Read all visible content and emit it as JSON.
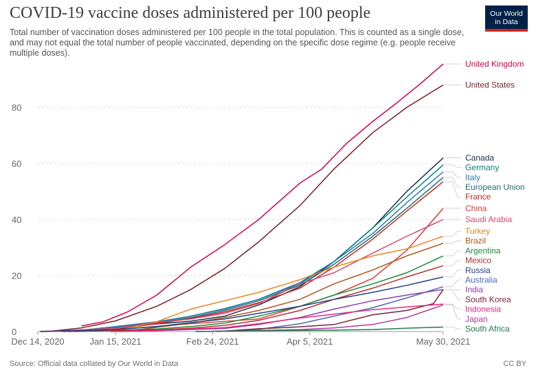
{
  "header": {
    "title": "COVID-19 vaccine doses administered per 100 people",
    "subtitle": "Total number of vaccination doses administered per 100 people in the total population. This is counted as a single dose, and may not equal the total number of people vaccinated, depending on the specific dose regime (e.g. people receive multiple doses).",
    "logo_line1": "Our World",
    "logo_line2": "in Data",
    "logo_color": "#002147",
    "logo_accent": "#ce261e"
  },
  "footer": {
    "source": "Source: Official data collated by Our World in Data",
    "license": "CC BY"
  },
  "chart_data": {
    "type": "line",
    "title": "COVID-19 vaccine doses administered per 100 people",
    "xlabel": "",
    "ylabel": "",
    "x_start": "2020-12-14",
    "x_end": "2021-05-30",
    "x_ticks": [
      {
        "date": "2020-12-14",
        "label": "Dec 14, 2020"
      },
      {
        "date": "2021-01-15",
        "label": "Jan 15, 2021"
      },
      {
        "date": "2021-02-24",
        "label": "Feb 24, 2021"
      },
      {
        "date": "2021-04-05",
        "label": "Apr 5, 2021"
      },
      {
        "date": "2021-05-30",
        "label": "May 30, 2021"
      }
    ],
    "ylim": [
      0,
      95
    ],
    "y_ticks": [
      0,
      20,
      40,
      60,
      80
    ],
    "grid": "horizontal dashed",
    "legend": "right (line labels)",
    "series": [
      {
        "name": "United Kingdom",
        "color": "#d6004f",
        "points": [
          [
            "2021-01-01",
            2
          ],
          [
            "2021-01-10",
            3.5
          ],
          [
            "2021-01-20",
            7
          ],
          [
            "2021-02-01",
            13
          ],
          [
            "2021-02-15",
            23
          ],
          [
            "2021-03-01",
            31
          ],
          [
            "2021-03-15",
            40
          ],
          [
            "2021-04-01",
            53
          ],
          [
            "2021-04-10",
            58
          ],
          [
            "2021-04-20",
            67
          ],
          [
            "2021-05-01",
            75
          ],
          [
            "2021-05-10",
            81
          ],
          [
            "2021-05-20",
            88
          ],
          [
            "2021-05-30",
            95.5
          ]
        ]
      },
      {
        "name": "United States",
        "color": "#7a1c25",
        "points": [
          [
            "2020-12-20",
            0.2
          ],
          [
            "2021-01-01",
            1.3
          ],
          [
            "2021-01-15",
            3.8
          ],
          [
            "2021-02-01",
            9
          ],
          [
            "2021-02-15",
            15
          ],
          [
            "2021-03-01",
            22.5
          ],
          [
            "2021-03-15",
            32
          ],
          [
            "2021-04-01",
            45
          ],
          [
            "2021-04-15",
            58
          ],
          [
            "2021-05-01",
            71
          ],
          [
            "2021-05-15",
            80
          ],
          [
            "2021-05-30",
            88
          ]
        ]
      },
      {
        "name": "Canada",
        "color": "#1a2f4a",
        "points": [
          [
            "2020-12-15",
            0
          ],
          [
            "2021-01-01",
            0.5
          ],
          [
            "2021-01-15",
            1.7
          ],
          [
            "2021-02-01",
            2.7
          ],
          [
            "2021-02-15",
            3.7
          ],
          [
            "2021-03-01",
            5.5
          ],
          [
            "2021-03-15",
            9.5
          ],
          [
            "2021-04-01",
            16
          ],
          [
            "2021-04-15",
            25
          ],
          [
            "2021-05-01",
            37
          ],
          [
            "2021-05-15",
            50
          ],
          [
            "2021-05-30",
            62
          ]
        ]
      },
      {
        "name": "Germany",
        "color": "#00847e",
        "points": [
          [
            "2020-12-27",
            0
          ],
          [
            "2021-01-15",
            1.5
          ],
          [
            "2021-02-01",
            3.3
          ],
          [
            "2021-02-15",
            5.5
          ],
          [
            "2021-03-01",
            8.2
          ],
          [
            "2021-03-15",
            11.5
          ],
          [
            "2021-04-01",
            17
          ],
          [
            "2021-04-15",
            25
          ],
          [
            "2021-05-01",
            37
          ],
          [
            "2021-05-15",
            48
          ],
          [
            "2021-05-30",
            59.5
          ]
        ]
      },
      {
        "name": "Italy",
        "color": "#2b79b6",
        "points": [
          [
            "2020-12-27",
            0
          ],
          [
            "2021-01-15",
            1.8
          ],
          [
            "2021-02-01",
            3.5
          ],
          [
            "2021-02-15",
            5.5
          ],
          [
            "2021-03-01",
            8
          ],
          [
            "2021-03-15",
            11.5
          ],
          [
            "2021-04-01",
            17.5
          ],
          [
            "2021-04-15",
            25
          ],
          [
            "2021-05-01",
            35
          ],
          [
            "2021-05-15",
            46
          ],
          [
            "2021-05-30",
            57
          ]
        ]
      },
      {
        "name": "European Union",
        "color": "#1f6f78",
        "points": [
          [
            "2020-12-27",
            0
          ],
          [
            "2021-01-15",
            1.3
          ],
          [
            "2021-02-01",
            3
          ],
          [
            "2021-02-15",
            5
          ],
          [
            "2021-03-01",
            7.5
          ],
          [
            "2021-03-15",
            11
          ],
          [
            "2021-04-01",
            16.5
          ],
          [
            "2021-04-15",
            24
          ],
          [
            "2021-05-01",
            34
          ],
          [
            "2021-05-15",
            44
          ],
          [
            "2021-05-30",
            55
          ]
        ]
      },
      {
        "name": "France",
        "color": "#c8281f",
        "points": [
          [
            "2020-12-27",
            0
          ],
          [
            "2021-01-15",
            0.8
          ],
          [
            "2021-02-01",
            2.8
          ],
          [
            "2021-02-15",
            4.7
          ],
          [
            "2021-03-01",
            7
          ],
          [
            "2021-03-15",
            10.3
          ],
          [
            "2021-04-01",
            15.5
          ],
          [
            "2021-04-15",
            23
          ],
          [
            "2021-05-01",
            33
          ],
          [
            "2021-05-15",
            43
          ],
          [
            "2021-05-30",
            53.5
          ]
        ]
      },
      {
        "name": "China",
        "color": "#e03a3a",
        "points": [
          [
            "2020-12-15",
            0.1
          ],
          [
            "2021-01-15",
            0.7
          ],
          [
            "2021-02-15",
            2.8
          ],
          [
            "2021-03-15",
            4.5
          ],
          [
            "2021-04-01",
            9
          ],
          [
            "2021-04-15",
            13
          ],
          [
            "2021-05-01",
            19
          ],
          [
            "2021-05-15",
            29
          ],
          [
            "2021-05-30",
            44
          ]
        ]
      },
      {
        "name": "Saudi Arabia",
        "color": "#d54a6e",
        "points": [
          [
            "2020-12-17",
            0
          ],
          [
            "2021-01-15",
            1.2
          ],
          [
            "2021-02-01",
            3.2
          ],
          [
            "2021-02-15",
            4.5
          ],
          [
            "2021-03-01",
            6.5
          ],
          [
            "2021-03-15",
            10
          ],
          [
            "2021-04-01",
            17
          ],
          [
            "2021-04-15",
            21
          ],
          [
            "2021-05-01",
            28
          ],
          [
            "2021-05-15",
            34
          ],
          [
            "2021-05-30",
            40
          ]
        ]
      },
      {
        "name": "Turkey",
        "color": "#e8821f",
        "points": [
          [
            "2021-01-14",
            0
          ],
          [
            "2021-02-01",
            3.5
          ],
          [
            "2021-02-15",
            8
          ],
          [
            "2021-03-01",
            11
          ],
          [
            "2021-03-15",
            14
          ],
          [
            "2021-04-01",
            18.5
          ],
          [
            "2021-04-15",
            23
          ],
          [
            "2021-05-01",
            27
          ],
          [
            "2021-05-15",
            29.5
          ],
          [
            "2021-05-30",
            34
          ]
        ]
      },
      {
        "name": "Brazil",
        "color": "#b4531a",
        "points": [
          [
            "2021-01-18",
            0
          ],
          [
            "2021-02-01",
            1.5
          ],
          [
            "2021-02-15",
            3
          ],
          [
            "2021-03-01",
            5
          ],
          [
            "2021-03-15",
            7.5
          ],
          [
            "2021-04-01",
            11.5
          ],
          [
            "2021-04-15",
            17
          ],
          [
            "2021-05-01",
            22
          ],
          [
            "2021-05-15",
            27
          ],
          [
            "2021-05-30",
            31.5
          ]
        ]
      },
      {
        "name": "Argentina",
        "color": "#1a8a3c",
        "points": [
          [
            "2020-12-29",
            0
          ],
          [
            "2021-01-15",
            0.4
          ],
          [
            "2021-02-01",
            0.9
          ],
          [
            "2021-02-15",
            1.8
          ],
          [
            "2021-03-01",
            3
          ],
          [
            "2021-03-15",
            5.5
          ],
          [
            "2021-04-01",
            9
          ],
          [
            "2021-04-15",
            13
          ],
          [
            "2021-05-01",
            17
          ],
          [
            "2021-05-15",
            21
          ],
          [
            "2021-05-30",
            27
          ]
        ]
      },
      {
        "name": "Mexico",
        "color": "#b02e2e",
        "points": [
          [
            "2020-12-24",
            0
          ],
          [
            "2021-01-15",
            0.4
          ],
          [
            "2021-02-01",
            0.6
          ],
          [
            "2021-02-15",
            1.2
          ],
          [
            "2021-03-01",
            2.2
          ],
          [
            "2021-03-15",
            4
          ],
          [
            "2021-04-01",
            7.5
          ],
          [
            "2021-04-15",
            11.5
          ],
          [
            "2021-05-01",
            15.5
          ],
          [
            "2021-05-15",
            19.5
          ],
          [
            "2021-05-30",
            23.5
          ]
        ]
      },
      {
        "name": "Russia",
        "color": "#1f3f8a",
        "points": [
          [
            "2020-12-15",
            0
          ],
          [
            "2021-01-15",
            0.7
          ],
          [
            "2021-02-01",
            1.8
          ],
          [
            "2021-02-15",
            3.2
          ],
          [
            "2021-03-01",
            4.5
          ],
          [
            "2021-03-15",
            6.5
          ],
          [
            "2021-04-01",
            9
          ],
          [
            "2021-04-15",
            11.5
          ],
          [
            "2021-05-01",
            14
          ],
          [
            "2021-05-15",
            16.5
          ],
          [
            "2021-05-30",
            19.5
          ]
        ]
      },
      {
        "name": "Australia",
        "color": "#4a6ab0",
        "points": [
          [
            "2021-02-22",
            0
          ],
          [
            "2021-03-01",
            0.2
          ],
          [
            "2021-03-15",
            0.8
          ],
          [
            "2021-04-01",
            2.8
          ],
          [
            "2021-04-15",
            5.5
          ],
          [
            "2021-05-01",
            8.5
          ],
          [
            "2021-05-15",
            12
          ],
          [
            "2021-05-30",
            16
          ]
        ]
      },
      {
        "name": "India",
        "color": "#8c3fa8",
        "points": [
          [
            "2021-01-16",
            0
          ],
          [
            "2021-02-01",
            0.3
          ],
          [
            "2021-02-15",
            0.7
          ],
          [
            "2021-03-01",
            1.1
          ],
          [
            "2021-03-15",
            2.5
          ],
          [
            "2021-04-01",
            5
          ],
          [
            "2021-04-15",
            8
          ],
          [
            "2021-05-01",
            11
          ],
          [
            "2021-05-15",
            13
          ],
          [
            "2021-05-30",
            15
          ]
        ]
      },
      {
        "name": "South Korea",
        "color": "#7a1f3a",
        "points": [
          [
            "2021-02-26",
            0
          ],
          [
            "2021-03-15",
            1
          ],
          [
            "2021-04-01",
            1.7
          ],
          [
            "2021-04-15",
            2.5
          ],
          [
            "2021-05-01",
            6
          ],
          [
            "2021-05-15",
            7.5
          ],
          [
            "2021-05-26",
            10
          ],
          [
            "2021-05-30",
            15
          ]
        ]
      },
      {
        "name": "Indonesia",
        "color": "#e0297c",
        "points": [
          [
            "2021-01-13",
            0
          ],
          [
            "2021-02-01",
            0.4
          ],
          [
            "2021-02-15",
            0.9
          ],
          [
            "2021-03-01",
            1.4
          ],
          [
            "2021-03-15",
            2.8
          ],
          [
            "2021-04-01",
            4.8
          ],
          [
            "2021-04-15",
            6.2
          ],
          [
            "2021-05-01",
            7.8
          ],
          [
            "2021-05-15",
            8.8
          ],
          [
            "2021-05-30",
            9.8
          ]
        ]
      },
      {
        "name": "Japan",
        "color": "#b0389c",
        "points": [
          [
            "2021-02-17",
            0
          ],
          [
            "2021-03-15",
            0.4
          ],
          [
            "2021-04-01",
            0.7
          ],
          [
            "2021-04-15",
            1.3
          ],
          [
            "2021-05-01",
            2.5
          ],
          [
            "2021-05-15",
            5
          ],
          [
            "2021-05-30",
            9.5
          ]
        ]
      },
      {
        "name": "South Africa",
        "color": "#1e7a4a",
        "points": [
          [
            "2021-02-17",
            0
          ],
          [
            "2021-03-15",
            0.3
          ],
          [
            "2021-04-15",
            0.5
          ],
          [
            "2021-05-01",
            0.7
          ],
          [
            "2021-05-15",
            1.2
          ],
          [
            "2021-05-30",
            1.6
          ]
        ]
      }
    ]
  }
}
